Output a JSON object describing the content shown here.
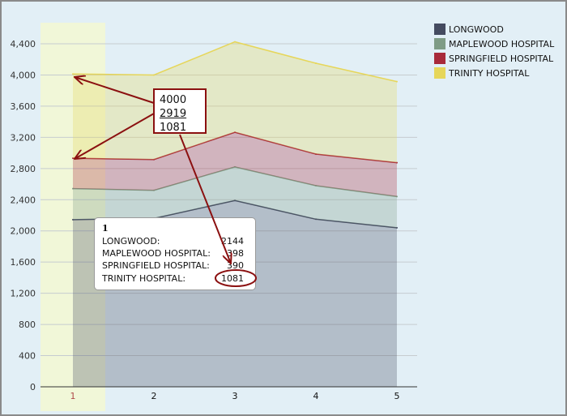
{
  "chart_data": {
    "type": "area",
    "stacked": true,
    "categories": [
      "1",
      "2",
      "3",
      "4",
      "5"
    ],
    "series": [
      {
        "name": "LONGWOOD",
        "color": "#444b60",
        "values": [
          2144,
          2160,
          2390,
          2150,
          2040
        ]
      },
      {
        "name": "MAPLEWOOD HOSPITAL",
        "color": "#7f9c86",
        "values": [
          398,
          360,
          430,
          430,
          400
        ]
      },
      {
        "name": "SPRINGFIELD HOSPITAL",
        "color": "#a82a3a",
        "values": [
          390,
          395,
          445,
          405,
          435
        ]
      },
      {
        "name": "TRINITY HOSPITAL",
        "color": "#e6d65a",
        "values": [
          1081,
          1085,
          1160,
          1165,
          1040
        ]
      }
    ],
    "ylim": [
      0,
      4400
    ],
    "yticks": [
      "0",
      "400",
      "800",
      "1,200",
      "1,600",
      "2,000",
      "2,400",
      "2,800",
      "3,200",
      "3,600",
      "4,000",
      "4,400"
    ],
    "grid": true,
    "legend": "top-right",
    "highlighted_category": "1"
  },
  "tooltip": {
    "title": "1",
    "rows": [
      {
        "label": "LONGWOOD:",
        "value": "2144"
      },
      {
        "label": "MAPLEWOOD HOSPITAL:",
        "value": "398"
      },
      {
        "label": "SPRINGFIELD HOSPITAL:",
        "value": "390"
      },
      {
        "label": "TRINITY HOSPITAL:",
        "value": "1081"
      }
    ]
  },
  "annotation": {
    "lines": [
      "4000",
      "2919",
      "1081"
    ],
    "color": "#8b1010"
  }
}
